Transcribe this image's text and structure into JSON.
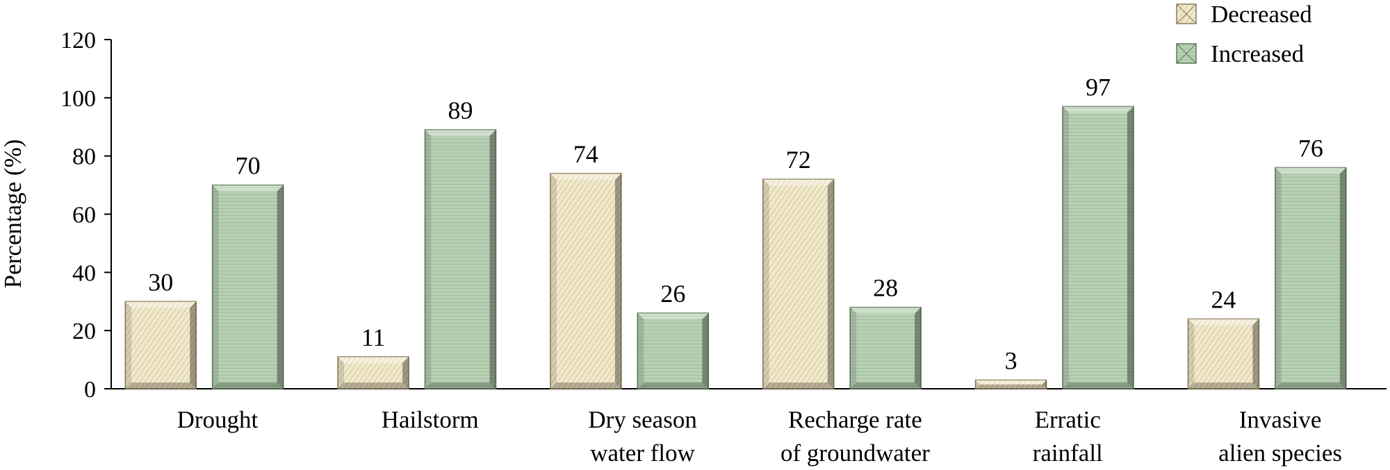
{
  "chart_data": {
    "type": "bar",
    "categories": [
      [
        "Drought"
      ],
      [
        "Hailstorm"
      ],
      [
        "Dry season",
        "water flow"
      ],
      [
        "Recharge rate",
        "of groundwater"
      ],
      [
        "Erratic",
        "rainfall"
      ],
      [
        "Invasive",
        "alien species"
      ]
    ],
    "series": [
      {
        "name": "Decreased",
        "values": [
          30,
          11,
          74,
          72,
          3,
          24
        ],
        "color": "#efe6c6",
        "hatch": "#c9b98b",
        "edge": "#8a7d58"
      },
      {
        "name": "Increased",
        "values": [
          70,
          89,
          26,
          28,
          97,
          76
        ],
        "color": "#b3cdb0",
        "hatch": "#8fae8c",
        "edge": "#5e7a5b"
      }
    ],
    "value_labels": [
      [
        "30",
        "11",
        "74",
        "72",
        "3",
        "24"
      ],
      [
        "70",
        "89",
        "26",
        "28",
        "97",
        "76"
      ]
    ],
    "ylabel": "Percentage (%)",
    "ylim": [
      0,
      120
    ],
    "yticks": [
      0,
      20,
      40,
      60,
      80,
      100,
      120
    ],
    "legend_position": "top-right",
    "grid": false
  }
}
